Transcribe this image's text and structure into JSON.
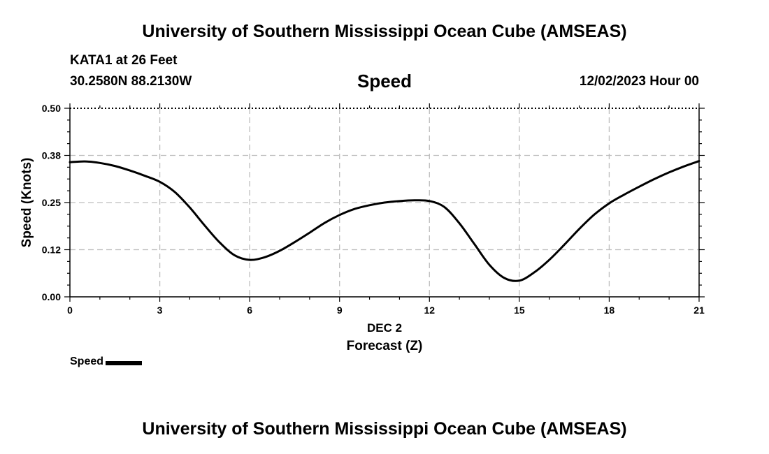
{
  "header": {
    "title": "University of Southern Mississippi Ocean Cube (AMSEAS)",
    "station": "KATA1 at 26 Feet",
    "coords": "30.2580N  88.2130W",
    "datetime": "12/02/2023 Hour 00"
  },
  "footer": {
    "title": "University of Southern Mississippi Ocean Cube (AMSEAS)"
  },
  "legend": {
    "label": "Speed"
  },
  "chart_data": {
    "type": "line",
    "title": "Speed",
    "ylabel": "Speed (Knots)",
    "xlabel": "Forecast (Z)",
    "x_sublabel": "DEC 2",
    "xlim": [
      0,
      21
    ],
    "ylim": [
      0,
      0.5
    ],
    "x_ticks": [
      0,
      3,
      6,
      9,
      12,
      15,
      18,
      21
    ],
    "x_tick_labels": [
      "0",
      "3",
      "6",
      "9",
      "12",
      "15",
      "18",
      "21"
    ],
    "y_ticks": [
      0,
      0.125,
      0.25,
      0.375,
      0.5
    ],
    "y_tick_labels": [
      "0.00",
      "0.12",
      "0.25",
      "0.38",
      "0.50"
    ],
    "grid": true,
    "line_color": "#000000",
    "series": [
      {
        "name": "Speed",
        "x": [
          0,
          0.5,
          1,
          1.5,
          2,
          2.5,
          3,
          3.5,
          4,
          4.5,
          5,
          5.5,
          6,
          6.5,
          7,
          7.5,
          8,
          8.5,
          9,
          9.5,
          10,
          10.5,
          11,
          11.5,
          12,
          12.5,
          13,
          13.5,
          14,
          14.5,
          15,
          15.5,
          16,
          16.5,
          17,
          17.5,
          18,
          18.5,
          19,
          19.5,
          20,
          20.5,
          21
        ],
        "values": [
          0.357,
          0.359,
          0.355,
          0.347,
          0.335,
          0.321,
          0.305,
          0.278,
          0.237,
          0.189,
          0.144,
          0.11,
          0.098,
          0.105,
          0.122,
          0.145,
          0.17,
          0.196,
          0.217,
          0.233,
          0.243,
          0.25,
          0.254,
          0.256,
          0.254,
          0.238,
          0.195,
          0.14,
          0.085,
          0.05,
          0.043,
          0.065,
          0.098,
          0.138,
          0.18,
          0.218,
          0.248,
          0.271,
          0.292,
          0.312,
          0.33,
          0.346,
          0.36
        ]
      }
    ]
  }
}
